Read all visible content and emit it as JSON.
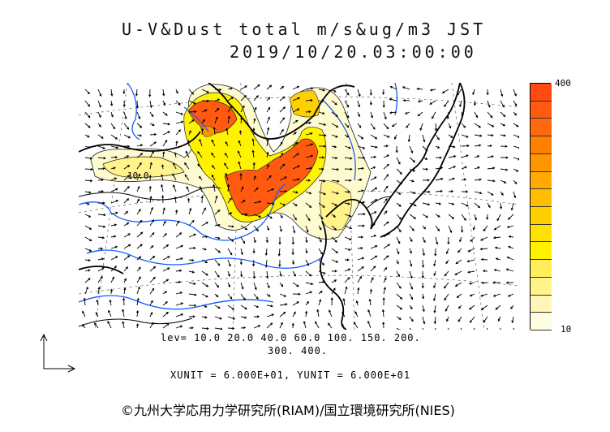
{
  "title": {
    "line1": "U-V&Dust total m/s&ug/m3 JST",
    "line2": "2019/10/20.03:00:00"
  },
  "colorbar": {
    "max_label": "400",
    "min_label": "10",
    "colors": [
      "#fffde0",
      "#fff6b8",
      "#fff38a",
      "#ffed5a",
      "#fff200",
      "#ffe000",
      "#ffd000",
      "#ffbf00",
      "#ffaa00",
      "#ff9500",
      "#ff7f00",
      "#ff6a10",
      "#ff5a10",
      "#ff4a10"
    ]
  },
  "map": {
    "contour_label": "10.0"
  },
  "legend": {
    "levels_line1": "lev= 10.0 20.0 40.0 60.0 100. 150. 200.",
    "levels_line2": "300. 400.",
    "units_line": "XUNIT = 6.000E+01, YUNIT = 6.000E+01"
  },
  "copyright": "©九州大学応用力学研究所(RIAM)/国立環境研究所(NIES)"
}
